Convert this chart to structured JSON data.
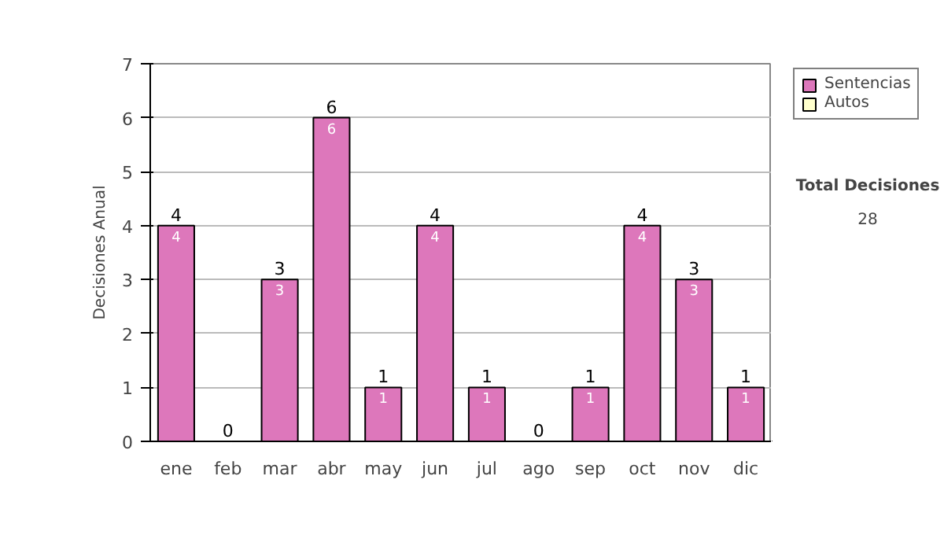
{
  "chart_data": {
    "type": "bar",
    "stacked": true,
    "ylabel": "Decisiones Anual",
    "categories": [
      "ene",
      "feb",
      "mar",
      "abr",
      "may",
      "jun",
      "jul",
      "ago",
      "sep",
      "oct",
      "nov",
      "dic"
    ],
    "series": [
      {
        "name": "Sentencias",
        "color": "#dd77bb",
        "values": [
          4,
          0,
          3,
          6,
          1,
          4,
          1,
          0,
          1,
          4,
          3,
          1
        ],
        "value_labels": [
          "4",
          null,
          "3",
          "6",
          "1",
          "4",
          "1",
          null,
          "1",
          "4",
          "3",
          "1"
        ]
      },
      {
        "name": "Autos",
        "color": "#ffffcc",
        "values": [
          0,
          0,
          0,
          0,
          0,
          0,
          0,
          0,
          0,
          0,
          0,
          0
        ]
      }
    ],
    "totals": [
      "4",
      "0",
      "3",
      "6",
      "1",
      "4",
      "1",
      "0",
      "1",
      "4",
      "3",
      "1"
    ],
    "ylim": [
      0,
      7
    ],
    "yticks": [
      0,
      1,
      2,
      3,
      4,
      5,
      6,
      7
    ],
    "grid": "y",
    "legend": "right",
    "annotations": [
      "Total Decisiones",
      "28"
    ]
  }
}
